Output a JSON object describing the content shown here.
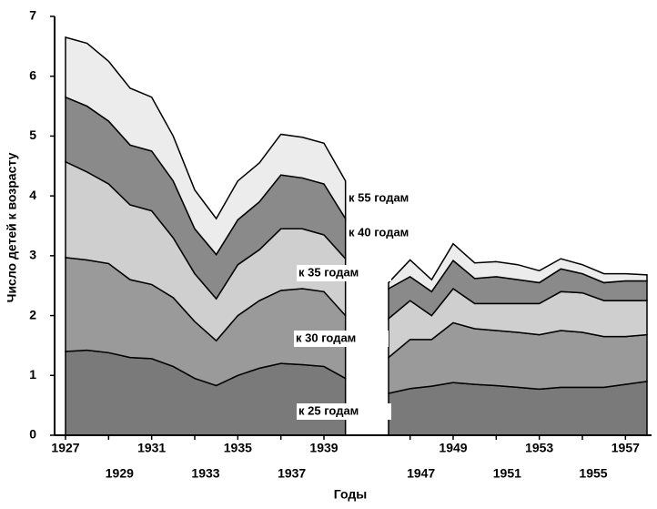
{
  "chart_data": {
    "type": "stacked_area",
    "x_label": "Годы",
    "y_label": "Число детей к возрасту",
    "categories": [
      "1927",
      null,
      "1929",
      null,
      "1931",
      null,
      "1933",
      null,
      "1935",
      null,
      "1937",
      null,
      "1939",
      null,
      null,
      null,
      "1947",
      null,
      "1949",
      null,
      "1951",
      null,
      "1953",
      null,
      "1955",
      null,
      "1957",
      null
    ],
    "ylim": [
      0,
      7
    ],
    "yticks": [
      0,
      1,
      2,
      3,
      4,
      5,
      6,
      7
    ],
    "series": [
      {
        "name": "к 25 годам",
        "color": "#7a7a7a",
        "values": [
          1.4,
          1.42,
          1.38,
          1.3,
          1.28,
          1.15,
          0.95,
          0.83,
          1.0,
          1.12,
          1.2,
          1.18,
          1.15,
          0.95,
          null,
          0.7,
          0.78,
          0.82,
          0.88,
          0.85,
          0.83,
          0.8,
          0.77,
          0.8,
          0.8,
          0.8,
          0.85,
          0.9
        ]
      },
      {
        "name": "к 30 годам",
        "color": "#9a9a9a",
        "values": [
          1.57,
          1.51,
          1.49,
          1.3,
          1.24,
          1.15,
          0.95,
          0.75,
          1.0,
          1.13,
          1.22,
          1.27,
          1.25,
          1.05,
          null,
          0.6,
          0.82,
          0.78,
          1.0,
          0.93,
          0.92,
          0.92,
          0.91,
          0.95,
          0.92,
          0.85,
          0.8,
          0.78
        ]
      },
      {
        "name": "к 35 годам",
        "color": "#cfcfcf",
        "values": [
          1.6,
          1.47,
          1.33,
          1.25,
          1.23,
          1.0,
          0.8,
          0.7,
          0.85,
          0.85,
          1.03,
          1.0,
          0.95,
          0.95,
          null,
          0.65,
          0.65,
          0.4,
          0.57,
          0.42,
          0.45,
          0.48,
          0.52,
          0.65,
          0.66,
          0.6,
          0.6,
          0.57
        ]
      },
      {
        "name": "к 40 годам",
        "color": "#8a8a8a",
        "values": [
          1.08,
          1.1,
          1.05,
          1.0,
          1.0,
          0.95,
          0.75,
          0.74,
          0.75,
          0.8,
          0.9,
          0.85,
          0.85,
          0.67,
          null,
          0.5,
          0.4,
          0.4,
          0.47,
          0.42,
          0.45,
          0.4,
          0.35,
          0.38,
          0.32,
          0.3,
          0.33,
          0.33
        ]
      },
      {
        "name": "к 55 годам",
        "color": "#ececec",
        "values": [
          1.0,
          1.05,
          1.0,
          0.95,
          0.9,
          0.75,
          0.65,
          0.6,
          0.65,
          0.65,
          0.68,
          0.68,
          0.68,
          0.63,
          null,
          0.1,
          0.28,
          0.2,
          0.28,
          0.26,
          0.25,
          0.25,
          0.2,
          0.17,
          0.15,
          0.15,
          0.12,
          0.1
        ]
      }
    ]
  }
}
